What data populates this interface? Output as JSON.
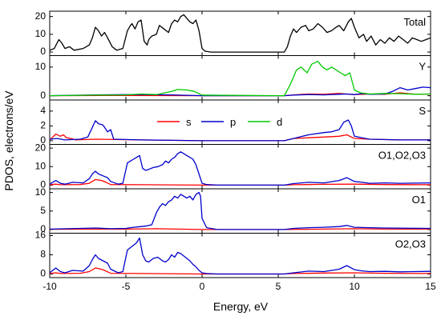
{
  "chart_data": {
    "type": "line",
    "xlabel": "Energy, eV",
    "ylabel": "PDOS, electrons/eV",
    "xlim": [
      -10,
      15
    ],
    "xticks": [
      -10,
      -5,
      0,
      5,
      10,
      15
    ],
    "grid": false,
    "legend": {
      "placement": "inside S panel, top-center",
      "entries": [
        {
          "name": "s",
          "color": "#ff0000"
        },
        {
          "name": "p",
          "color": "#0000cc"
        },
        {
          "name": "d",
          "color": "#00cc00"
        }
      ]
    },
    "colors": {
      "total": "#000000",
      "s": "#ff0000",
      "p": "#0000cc",
      "d": "#00cc00"
    },
    "panels": [
      {
        "label": "Total",
        "ylim": [
          -2,
          23
        ],
        "yticks": [
          0,
          10,
          20
        ],
        "series": [
          {
            "name": "",
            "color": "#000000",
            "x": [
              -10,
              -9.7,
              -9.4,
              -9.2,
              -9.0,
              -8.7,
              -8.4,
              -7.8,
              -7.4,
              -7.2,
              -7.0,
              -6.8,
              -6.6,
              -6.4,
              -6.2,
              -5.9,
              -5.6,
              -5.2,
              -4.9,
              -4.7,
              -4.6,
              -4.4,
              -4.2,
              -4.0,
              -3.8,
              -3.6,
              -3.5,
              -3.3,
              -3.0,
              -2.8,
              -2.5,
              -2.2,
              -2.0,
              -1.8,
              -1.6,
              -1.4,
              -1.2,
              -1.0,
              -0.8,
              -0.6,
              -0.4,
              -0.2,
              0.0,
              0.2,
              0.6,
              2,
              4,
              5.4,
              5.6,
              5.8,
              6.0,
              6.2,
              6.5,
              6.8,
              7.0,
              7.3,
              7.6,
              7.9,
              8.2,
              8.5,
              8.8,
              9.0,
              9.3,
              9.6,
              9.8,
              10.0,
              10.3,
              10.6,
              10.8,
              11.1,
              11.4,
              11.7,
              12.0,
              12.3,
              12.6,
              12.9,
              13.2,
              13.5,
              13.8,
              14.1,
              14.4,
              14.7,
              15.0
            ],
            "y": [
              1,
              2,
              7,
              5,
              2,
              3,
              1,
              2,
              4,
              8,
              14,
              12,
              9,
              11,
              8,
              3,
              1,
              2,
              12,
              15,
              16,
              13,
              17,
              18,
              6,
              4,
              7,
              9,
              10,
              15,
              13,
              11,
              16,
              18,
              17,
              20,
              21,
              19,
              17,
              16,
              18,
              12,
              2,
              0.5,
              0,
              0,
              0,
              0,
              3,
              9,
              13,
              11,
              14,
              15,
              12,
              13,
              16,
              14,
              11,
              12,
              14,
              15,
              12,
              17,
              19,
              14,
              8,
              10,
              6,
              9,
              4,
              7,
              5,
              8,
              6,
              9,
              7,
              5,
              8,
              7,
              6,
              7,
              8
            ]
          }
        ]
      },
      {
        "label": "Y",
        "ylim": [
          -1.5,
          14
        ],
        "yticks": [
          0,
          10
        ],
        "series": [
          {
            "name": "s",
            "color": "#ff0000",
            "x": [
              -10,
              -5,
              0,
              5.4,
              6,
              7,
              8,
              9,
              9.5,
              10,
              11,
              12,
              13,
              14,
              15
            ],
            "y": [
              0,
              0.1,
              0,
              0,
              0.3,
              0.6,
              0.5,
              0.8,
              0.6,
              0.4,
              0.6,
              0.5,
              1.0,
              0.5,
              0.6
            ]
          },
          {
            "name": "p",
            "color": "#0000cc",
            "x": [
              -10,
              -7,
              -4,
              -2,
              0,
              5.4,
              6,
              7,
              8,
              9,
              9.5,
              10,
              10.6,
              11,
              12,
              12.5,
              13,
              13.5,
              14,
              14.5,
              15
            ],
            "y": [
              0,
              0.3,
              0.4,
              0.3,
              0,
              0,
              0.2,
              0.4,
              0.3,
              0.5,
              0.6,
              0.4,
              0.8,
              0.5,
              0.6,
              1.5,
              2.8,
              2.0,
              2.5,
              3.0,
              2.8
            ]
          },
          {
            "name": "d",
            "color": "#00cc00",
            "x": [
              -10,
              -7,
              -5,
              -4,
              -3,
              -2,
              -1.6,
              -1,
              -0.5,
              0,
              5.4,
              5.8,
              6.2,
              6.5,
              6.9,
              7.2,
              7.6,
              7.9,
              8.2,
              8.5,
              8.8,
              9.1,
              9.4,
              9.7,
              10,
              10.4,
              11,
              12,
              13,
              14,
              15
            ],
            "y": [
              0,
              0.2,
              0.3,
              0.6,
              0.4,
              1.5,
              2.2,
              2.0,
              1.5,
              0.2,
              0,
              4,
              9,
              10,
              8,
              11,
              12,
              10,
              9,
              10,
              9,
              8,
              7,
              8,
              2,
              1,
              0.6,
              0.8,
              0.7,
              0.5,
              0.6
            ]
          }
        ]
      },
      {
        "label": "S",
        "ylim": [
          -0.5,
          5.5
        ],
        "yticks": [
          0,
          2,
          4
        ],
        "series": [
          {
            "name": "s",
            "color": "#ff0000",
            "x": [
              -10,
              -9.8,
              -9.6,
              -9.3,
              -9.1,
              -8.9,
              -8.6,
              -8.3,
              -7,
              -4,
              0,
              5.4,
              6,
              7,
              8,
              9,
              9.5,
              10,
              11,
              13,
              15
            ],
            "y": [
              0.1,
              0.5,
              0.9,
              0.6,
              0.8,
              0.4,
              0.3,
              0.1,
              0.2,
              0.1,
              0,
              0,
              0.3,
              0.4,
              0.5,
              0.6,
              0.8,
              0.3,
              0.2,
              0.1,
              0.1
            ]
          },
          {
            "name": "p",
            "color": "#0000cc",
            "x": [
              -10,
              -9.5,
              -9,
              -8,
              -7.5,
              -7.2,
              -7.0,
              -6.8,
              -6.5,
              -6.2,
              -6.0,
              -5.8,
              -4,
              -2,
              0,
              5.4,
              6,
              7,
              8,
              8.5,
              9,
              9.3,
              9.6,
              9.8,
              10,
              10.5,
              11,
              13,
              15
            ],
            "y": [
              0.2,
              0.3,
              0.1,
              0.2,
              0.5,
              1.8,
              2.7,
              2.3,
              2.1,
              1.2,
              1.5,
              0.2,
              0.1,
              0.05,
              0,
              0,
              0.3,
              0.8,
              1.1,
              1.2,
              1.5,
              2.5,
              2.8,
              2.0,
              0.6,
              0.4,
              0.2,
              0.1,
              0.1
            ]
          }
        ]
      },
      {
        "label": "O1,O2,O3",
        "ylim": [
          -2,
          22
        ],
        "yticks": [
          0,
          10,
          20
        ],
        "series": [
          {
            "name": "s",
            "color": "#ff0000",
            "x": [
              -10,
              -9.6,
              -9.3,
              -8,
              -7.4,
              -7.0,
              -6.6,
              -6.3,
              -6,
              -4,
              0,
              5.4,
              6,
              8,
              10,
              12,
              15
            ],
            "y": [
              0.2,
              0.5,
              0.2,
              0.3,
              1,
              3,
              2.5,
              1.5,
              0.3,
              0.2,
              0,
              0,
              0.2,
              0.4,
              0.5,
              0.3,
              0.2
            ]
          },
          {
            "name": "p",
            "color": "#0000cc",
            "x": [
              -10,
              -9.6,
              -9.3,
              -9,
              -8.5,
              -7.8,
              -7.4,
              -7.2,
              -7.0,
              -6.8,
              -6.5,
              -6.2,
              -6.0,
              -5.5,
              -5.2,
              -4.9,
              -4.7,
              -4.5,
              -4.3,
              -4.1,
              -3.9,
              -3.7,
              -3.5,
              -3.2,
              -2.9,
              -2.6,
              -2.4,
              -2.2,
              -2.0,
              -1.8,
              -1.6,
              -1.4,
              -1.2,
              -1.0,
              -0.8,
              -0.6,
              -0.4,
              -0.2,
              0.0,
              0.3,
              1,
              4,
              5.4,
              6,
              7,
              8,
              9,
              9.5,
              10,
              10.5,
              11,
              12,
              13,
              15
            ],
            "y": [
              0.5,
              2.5,
              1.0,
              0.5,
              1.5,
              1.2,
              3.5,
              6,
              7.5,
              6,
              5,
              4,
              2,
              0.5,
              1,
              12,
              13,
              14,
              15,
              16,
              9,
              8,
              8.5,
              9.5,
              10,
              11,
              13,
              12,
              14,
              15,
              17,
              18,
              17,
              16,
              15,
              14,
              11,
              6,
              1,
              0.3,
              0,
              0,
              0,
              0.8,
              1.5,
              1.2,
              2.5,
              4,
              2,
              1.5,
              1,
              1.2,
              1,
              1.2
            ]
          }
        ]
      },
      {
        "label": "O1",
        "ylim": [
          -1,
          11
        ],
        "yticks": [
          0,
          5,
          10
        ],
        "series": [
          {
            "name": "s",
            "color": "#ff0000",
            "x": [
              -10,
              -7,
              -5,
              -3,
              0,
              5.4,
              8,
              10,
              12,
              15
            ],
            "y": [
              0.05,
              0.1,
              0.1,
              0.2,
              0,
              0,
              0.1,
              0.2,
              0.1,
              0.1
            ]
          },
          {
            "name": "p",
            "color": "#0000cc",
            "x": [
              -10,
              -8,
              -7,
              -6,
              -5,
              -4.5,
              -4,
              -3.6,
              -3.3,
              -3,
              -2.8,
              -2.6,
              -2.4,
              -2.2,
              -2.0,
              -1.8,
              -1.6,
              -1.4,
              -1.2,
              -1.0,
              -0.8,
              -0.6,
              -0.4,
              -0.2,
              -0.1,
              0.0,
              0.3,
              1,
              4,
              5.4,
              6,
              7,
              8,
              9,
              9.5,
              10,
              11,
              12,
              15
            ],
            "y": [
              0.1,
              0.3,
              0.4,
              0.2,
              0.3,
              0.6,
              0.8,
              1.0,
              1.3,
              4.5,
              6,
              7,
              6.5,
              7.5,
              8,
              9,
              8.5,
              9.5,
              9,
              8.5,
              9,
              8,
              9.5,
              10,
              9,
              3,
              0.5,
              0,
              0,
              0,
              0.3,
              0.5,
              0.6,
              0.8,
              1.1,
              0.6,
              0.5,
              0.4,
              0.3
            ]
          }
        ]
      },
      {
        "label": "O2,O3",
        "ylim": [
          -1.5,
          17
        ],
        "yticks": [
          0,
          8,
          16
        ],
        "series": [
          {
            "name": "s",
            "color": "#ff0000",
            "x": [
              -10,
              -9.6,
              -9.3,
              -8,
              -7.4,
              -7.0,
              -6.6,
              -6.3,
              -6,
              -4,
              0,
              5.4,
              6,
              8,
              10,
              12,
              15
            ],
            "y": [
              0.2,
              0.5,
              0.2,
              0.3,
              1,
              2.5,
              2,
              1.2,
              0.3,
              0.2,
              0,
              0,
              0.2,
              0.4,
              0.5,
              0.3,
              0.2
            ]
          },
          {
            "name": "p",
            "color": "#0000cc",
            "x": [
              -10,
              -9.6,
              -9.3,
              -9,
              -8.5,
              -7.8,
              -7.4,
              -7.2,
              -7.0,
              -6.8,
              -6.5,
              -6.2,
              -6.0,
              -5.5,
              -5.2,
              -4.9,
              -4.7,
              -4.5,
              -4.3,
              -4.1,
              -3.9,
              -3.7,
              -3.5,
              -3.2,
              -2.9,
              -2.6,
              -2.4,
              -2.2,
              -2.0,
              -1.8,
              -1.6,
              -1.4,
              -1.2,
              -1.0,
              -0.8,
              -0.6,
              -0.4,
              -0.2,
              0.0,
              0.3,
              1,
              4,
              5.4,
              6,
              7,
              8,
              9,
              9.5,
              10,
              10.5,
              11,
              12,
              13,
              15
            ],
            "y": [
              0.5,
              2.5,
              1.0,
              0.5,
              1.5,
              1.2,
              3.5,
              6,
              8,
              6.5,
              5.5,
              4.5,
              2,
              0.5,
              1,
              10,
              11,
              12,
              13,
              15,
              8,
              5.5,
              5,
              6.5,
              7,
              5.5,
              5,
              6,
              8,
              7,
              9,
              8.5,
              7.5,
              6.5,
              5.5,
              4,
              3,
              1.5,
              0.5,
              0.2,
              0,
              0,
              0,
              0.5,
              1.2,
              1.0,
              2,
              3.5,
              1.8,
              1.3,
              1,
              1.1,
              0.9,
              1.1
            ]
          }
        ]
      }
    ]
  }
}
